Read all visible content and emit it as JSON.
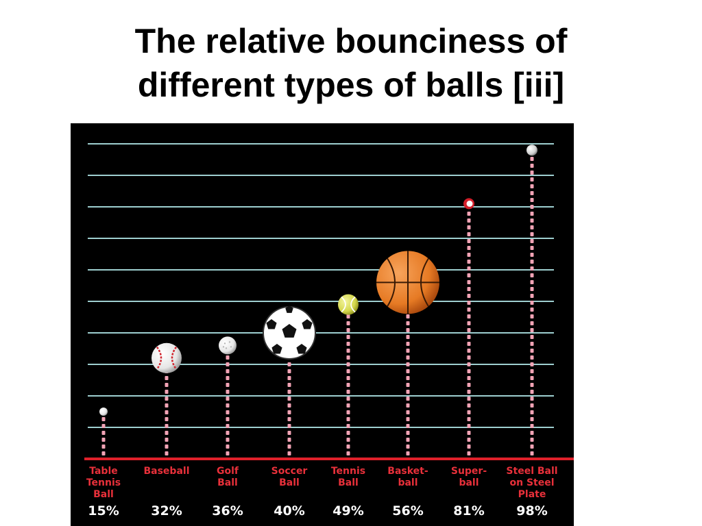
{
  "title": {
    "line1": "The relative bounciness of",
    "line2": "different types of balls [iii]"
  },
  "colors": {
    "background": "#000000",
    "gridline": "#9ecfd0",
    "baseline": "#e0202a",
    "dots": "#f2a3b5",
    "category_text": "#e8303a",
    "value_text": "#ffffff"
  },
  "chart_data": {
    "type": "bar",
    "title": "The relative bounciness of different types of balls [iii]",
    "xlabel": "",
    "ylabel": "",
    "ylim": [
      0,
      100
    ],
    "grid": true,
    "categories": [
      "Table Tennis Ball",
      "Baseball",
      "Golf Ball",
      "Soccer Ball",
      "Tennis Ball",
      "Basket-ball",
      "Super-ball",
      "Steel Ball on Steel Plate"
    ],
    "category_label_lines": [
      [
        "Table",
        "Tennis",
        "Ball"
      ],
      [
        "Baseball"
      ],
      [
        "Golf",
        "Ball"
      ],
      [
        "Soccer",
        "Ball"
      ],
      [
        "Tennis",
        "Ball"
      ],
      [
        "Basket-",
        "ball"
      ],
      [
        "Super-",
        "ball"
      ],
      [
        "Steel Ball",
        "on Steel",
        "Plate"
      ]
    ],
    "value_labels": [
      "15%",
      "32%",
      "36%",
      "40%",
      "49%",
      "56%",
      "81%",
      "98%"
    ],
    "values": [
      15,
      32,
      36,
      40,
      49,
      56,
      81,
      98
    ],
    "ball_icons": [
      "table-tennis-ball-icon",
      "baseball-icon",
      "golf-ball-icon",
      "soccer-ball-icon",
      "tennis-ball-icon",
      "basketball-icon",
      "superball-icon",
      "steel-ball-icon"
    ]
  }
}
